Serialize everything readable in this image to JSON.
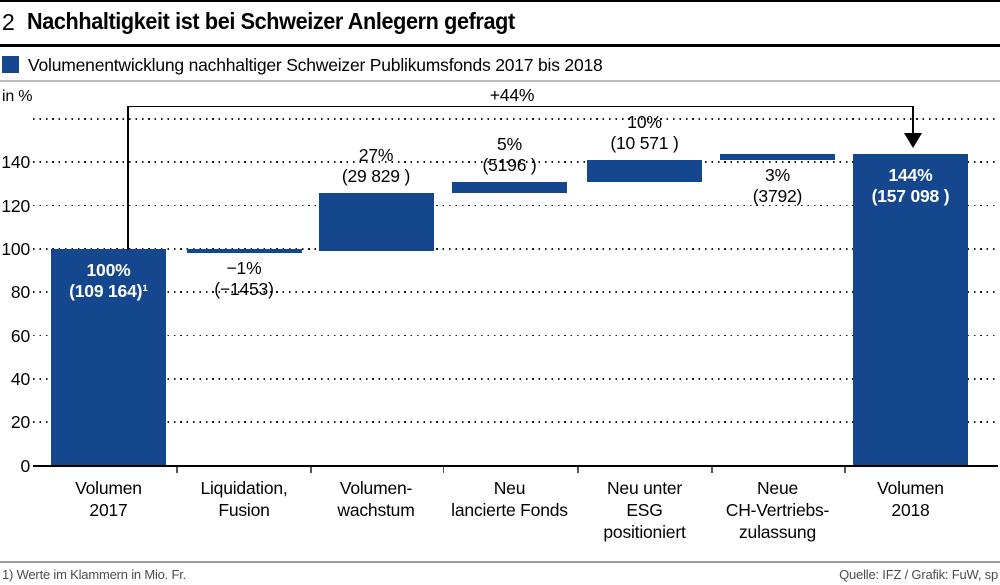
{
  "header": {
    "figure_number": "2",
    "title": "Nachhaltigkeit ist bei Schweizer Anlegern gefragt"
  },
  "legend": {
    "label": "Volumenentwicklung nachhaltiger Schweizer Publikumsfonds 2017 bis 2018"
  },
  "axis": {
    "unit_label": "in %",
    "tick_labels": [
      0,
      20,
      40,
      60,
      80,
      100,
      120,
      140
    ],
    "grid_values": [
      20,
      40,
      60,
      80,
      100,
      120,
      140,
      160
    ]
  },
  "annotation": {
    "label": "+44%"
  },
  "footer": {
    "note": "1) Werte im Klammern in Mio. Fr.",
    "source": "Quelle: IFZ / Grafik: FuW, sp"
  },
  "colors": {
    "bar_blue": "#15478f"
  },
  "chart_data": {
    "type": "bar",
    "subtype": "waterfall",
    "title": "Volumenentwicklung nachhaltiger Schweizer Publikumsfonds 2017 bis 2018",
    "xlabel": "",
    "ylabel": "in %",
    "ylim": [
      0,
      160
    ],
    "grid": true,
    "legend_position": "top",
    "categories": [
      "Volumen 2017",
      "Liquidation, Fusion",
      "Volumenwachstum",
      "Neu lancierte Fonds",
      "Neu unter ESG positioniert",
      "Neue CH-Vertriebszulassung",
      "Volumen 2018"
    ],
    "percent_values": [
      100,
      -1,
      27,
      5,
      10,
      3,
      144
    ],
    "values_mio_fr": [
      109164,
      -1453,
      29829,
      5196,
      10571,
      3792,
      157098
    ],
    "total_change_label": "+44%",
    "bars": [
      {
        "category_lines": [
          "Volumen",
          "2017"
        ],
        "percent_label": "100%",
        "value_label": "(109 164)¹",
        "start": 0,
        "end": 100,
        "label_placement": "inside"
      },
      {
        "category_lines": [
          "Liquidation,",
          "Fusion"
        ],
        "percent_label": "−1%",
        "value_label": "(−1453)",
        "start": 100,
        "end": 99,
        "label_placement": "below"
      },
      {
        "category_lines": [
          "Volumen-",
          "wachstum"
        ],
        "percent_label": "27%",
        "value_label": "(29 829 )",
        "start": 99,
        "end": 126,
        "label_placement": "above"
      },
      {
        "category_lines": [
          "Neu",
          "lancierte Fonds"
        ],
        "percent_label": "5%",
        "value_label": "(5196 )",
        "start": 126,
        "end": 131,
        "label_placement": "above"
      },
      {
        "category_lines": [
          "Neu unter",
          "ESG",
          "positioniert"
        ],
        "percent_label": "10%",
        "value_label": "(10 571 )",
        "start": 131,
        "end": 141,
        "label_placement": "above"
      },
      {
        "category_lines": [
          "Neue",
          "CH-Vertriebs-",
          "zulassung"
        ],
        "percent_label": "3%",
        "value_label": "(3792)",
        "start": 141,
        "end": 144,
        "label_placement": "below"
      },
      {
        "category_lines": [
          "Volumen",
          "2018"
        ],
        "percent_label": "144%",
        "value_label": "(157 098 )",
        "start": 0,
        "end": 144,
        "label_placement": "inside"
      }
    ]
  }
}
